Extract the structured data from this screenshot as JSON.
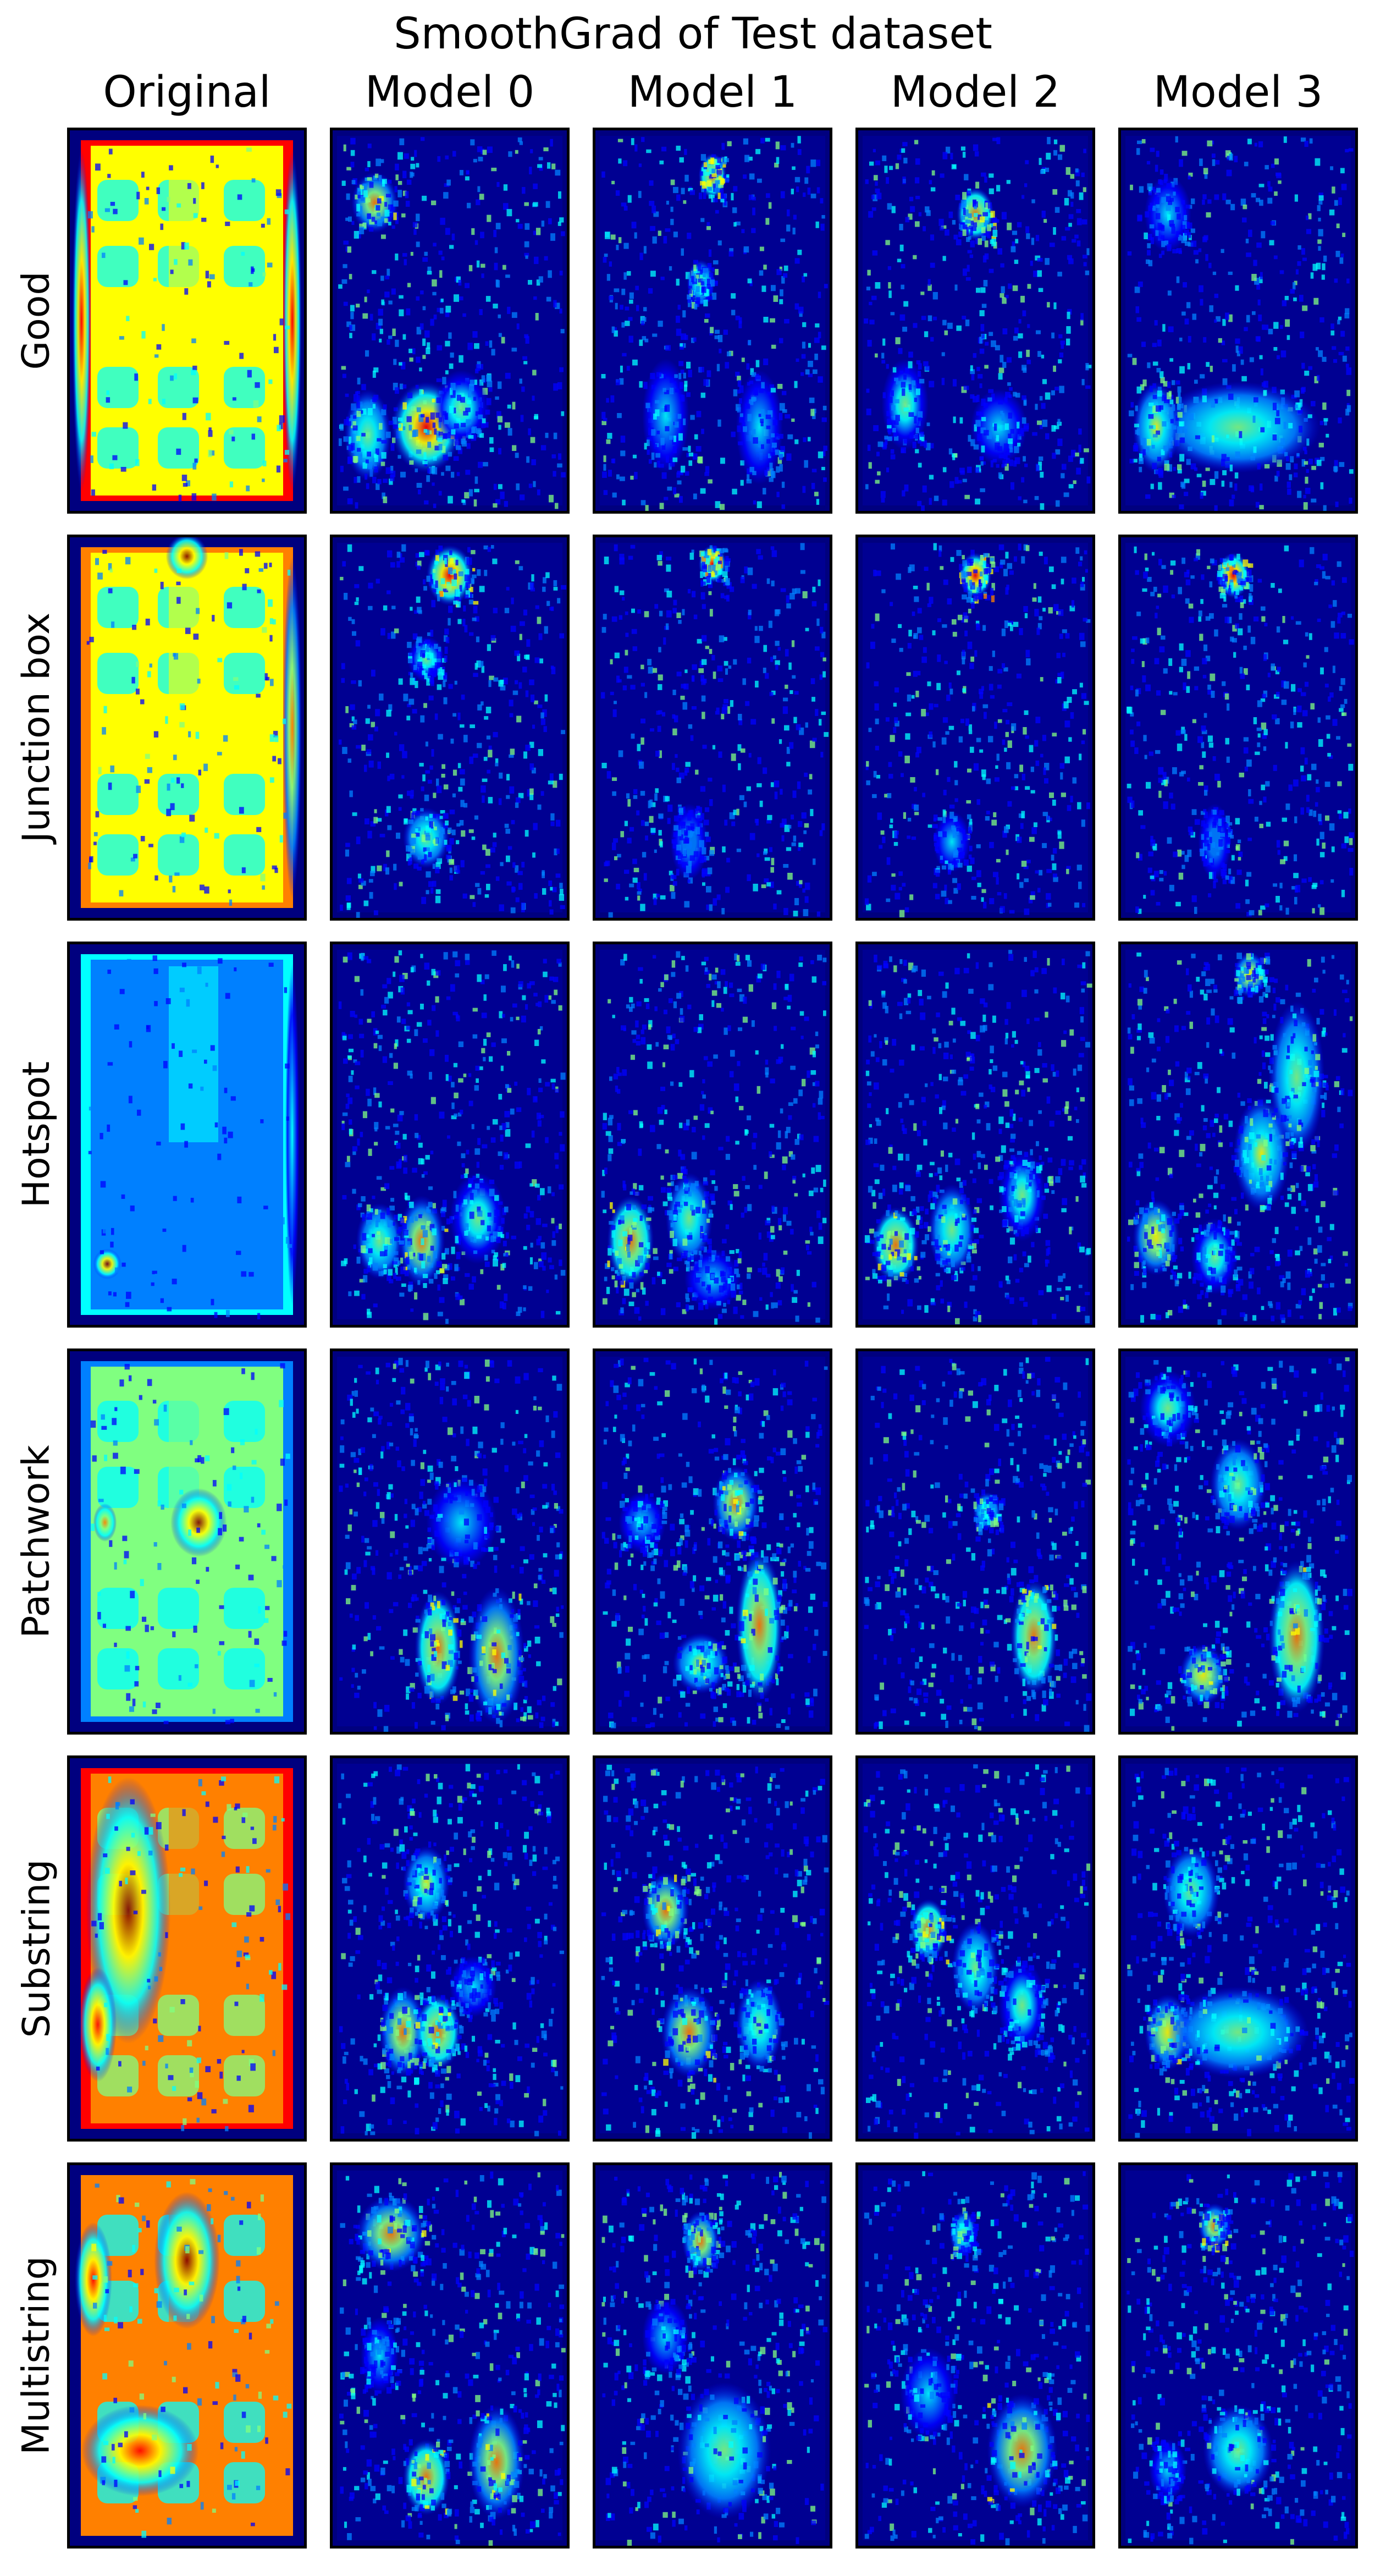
{
  "title": "SmoothGrad of Test dataset",
  "columns": [
    "Original",
    "Model 0",
    "Model 1",
    "Model 2",
    "Model 3"
  ],
  "rows": [
    "Good",
    "Junction box",
    "Hotspot",
    "Patchwork",
    "Substring",
    "Multistring"
  ],
  "colormap": [
    "#00007f",
    "#0000ff",
    "#0080ff",
    "#00ffff",
    "#80ff80",
    "#ffff00",
    "#ff8000",
    "#ff0000",
    "#7f0000"
  ]
}
